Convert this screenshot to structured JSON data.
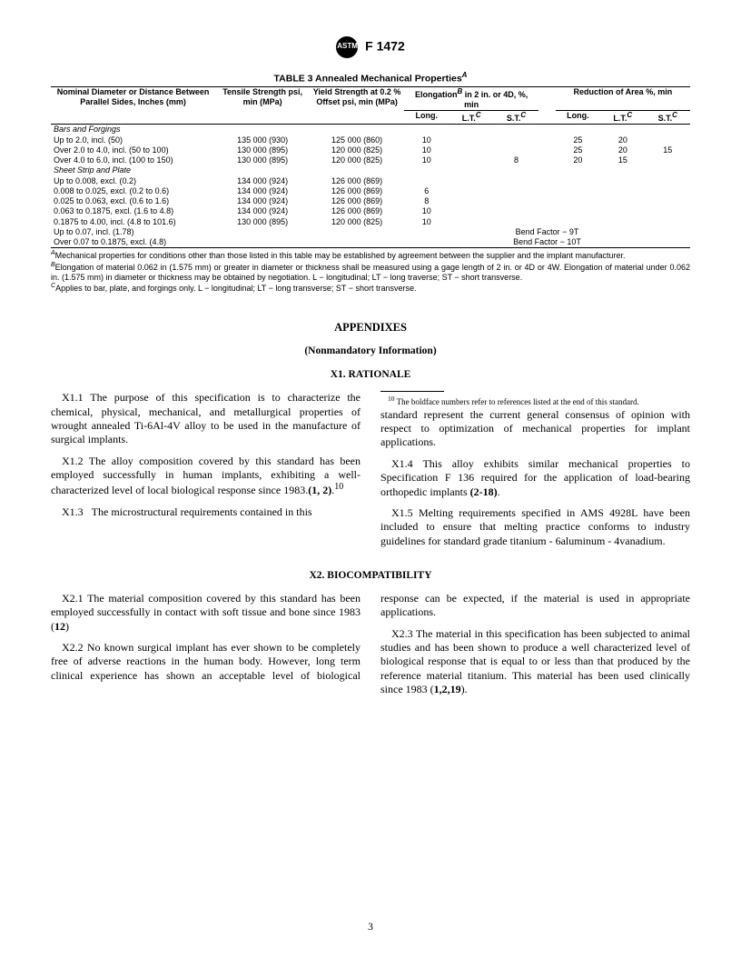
{
  "header": {
    "spec": "F 1472"
  },
  "table": {
    "caption": "TABLE 3  Annealed Mechanical Properties",
    "caption_sup": "A",
    "col_heads": {
      "c1": "Nominal Diameter or Distance Between Parallel Sides, Inches (mm)",
      "c2": "Tensile Strength psi, min (MPa)",
      "c3": "Yield Strength at 0.2 % Offset psi, min (MPa)",
      "elong_group": "Elongation",
      "elong_group_sup": "B",
      "elong_group_tail": " in 2 in. or 4D, %, min",
      "long1": "Long.",
      "lt1": "L.T.",
      "lt1_sup": "C",
      "st1": "S.T.",
      "st1_sup": "C",
      "red_group": "Reduction of Area %, min",
      "long2": "Long.",
      "lt2": "L.T.",
      "lt2_sup": "C",
      "st2": "S.T.",
      "st2_sup": "C"
    },
    "section1": "Bars and Forgings",
    "rows1": [
      {
        "c1": "Up to 2.0, incl. (50)",
        "c2": "135 000 (930)",
        "c3": "125 000 (860)",
        "e_l": "10",
        "e_lt": "",
        "e_st": "",
        "r_l": "25",
        "r_lt": "20",
        "r_st": ""
      },
      {
        "c1": "Over 2.0 to 4.0, incl. (50 to 100)",
        "c2": "130 000 (895)",
        "c3": "120 000 (825)",
        "e_l": "10",
        "e_lt": "",
        "e_st": "",
        "r_l": "25",
        "r_lt": "20",
        "r_st": "15"
      },
      {
        "c1": "Over 4.0 to 6.0, incl. (100 to 150)",
        "c2": "130 000 (895)",
        "c3": "120 000 (825)",
        "e_l": "10",
        "e_lt": "",
        "e_st": "8",
        "r_l": "20",
        "r_lt": "15",
        "r_st": ""
      }
    ],
    "section2": "Sheet Strip and Plate",
    "rows2": [
      {
        "c1": "Up to 0.008, excl. (0.2)",
        "c2": "134 000 (924)",
        "c3": "126 000 (869)",
        "e_l": "",
        "e_lt": "",
        "e_st": "",
        "r_l": "",
        "r_lt": "",
        "r_st": ""
      },
      {
        "c1": "0.008 to 0.025, excl. (0.2 to 0.6)",
        "c2": "134 000 (924)",
        "c3": "126 000 (869)",
        "e_l": "6",
        "e_lt": "",
        "e_st": "",
        "r_l": "",
        "r_lt": "",
        "r_st": ""
      },
      {
        "c1": "0.025 to 0.063, excl. (0.6 to 1.6)",
        "c2": "134 000 (924)",
        "c3": "126 000 (869)",
        "e_l": "8",
        "e_lt": "",
        "e_st": "",
        "r_l": "",
        "r_lt": "",
        "r_st": ""
      },
      {
        "c1": "0.063 to 0.1875, excl. (1.6 to 4.8)",
        "c2": "134 000 (924)",
        "c3": "126 000 (869)",
        "e_l": "10",
        "e_lt": "",
        "e_st": "",
        "r_l": "",
        "r_lt": "",
        "r_st": ""
      },
      {
        "c1": "0.1875 to 4.00, incl. (4.8 to 101.6)",
        "c2": "130 000 (895)",
        "c3": "120 000 (825)",
        "e_l": "10",
        "e_lt": "",
        "e_st": "",
        "r_l": "",
        "r_lt": "",
        "r_st": ""
      }
    ],
    "bend_rows": [
      {
        "c1": "Up to 0.07, incl. (1.78)",
        "bf": "Bend Factor − 9T"
      },
      {
        "c1": "Over 0.07 to 0.1875, excl. (4.8)",
        "bf": "Bend Factor − 10T"
      }
    ],
    "notes": {
      "A": "Mechanical properties for conditions other than those listed in this table may be established by agreement between the supplier and the implant manufacturer.",
      "B": "Elongation of material 0.062 in (1.575 mm) or greater in diameter or thickness shall be measured using a gage length of 2 in. or 4D or 4W. Elongation of material under 0.062 in. (1.575 mm) in diameter or thickness may be obtained by negotiation. L − longitudinal; LT − long traverse; ST − short transverse.",
      "C": "Applies to bar, plate, and forgings only. L − longitudinal; LT − long transverse; ST − short transverse."
    }
  },
  "appendix": {
    "title": "APPENDIXES",
    "subtitle": "(Nonmandatory Information)",
    "x1": {
      "head": "X1.   RATIONALE",
      "p1": "X1.1   The purpose of this specification is to characterize the chemical, physical, mechanical, and metallurgical properties of wrought annealed Ti-6Al-4V alloy to be used in the manufacture of surgical implants.",
      "p2a": "X1.2   The alloy composition covered by this standard has been employed successfully in human implants, exhibiting a well-characterized level of local biological response since 1983.",
      "p2b": "(1, 2)",
      "p2c": ".",
      "p2sup": "10",
      "p3": "X1.3   The microstructural requirements contained in this standard represent the current general consensus of opinion with respect to optimization of mechanical properties for implant applications.",
      "p4a": "X1.4   This alloy exhibits similar mechanical properties to Specification F 136 required for the application of load-bearing orthopedic implants ",
      "p4b": "(2-18)",
      "p4c": ".",
      "p5": "X1.5   Melting requirements specified in AMS 4928L have been included to ensure that melting practice conforms to industry guidelines for standard grade titanium - 6aluminum - 4vanadium.",
      "footnote": "10 The boldface numbers refer to references listed at the end of this standard."
    },
    "x2": {
      "head": "X2.  BIOCOMPATIBILITY",
      "p1a": "X2.1   The material composition covered by this standard has been employed successfully in contact with soft tissue and bone since 1983 (",
      "p1b": "12",
      "p1c": ")",
      "p2": "X2.2   No known surgical implant has ever shown to be completely free of adverse reactions in the human body. However, long term clinical experience has shown an acceptable level of biological response can be expected, if the material is used in appropriate applications.",
      "p3a": "X2.3   The material in this specification has been subjected to animal studies and has been shown to produce a well characterized level of biological response that is equal to or less than that produced by the reference material titanium. This material has been used clinically since 1983 (",
      "p3b": "1,2,19",
      "p3c": ")."
    }
  },
  "page_number": "3"
}
